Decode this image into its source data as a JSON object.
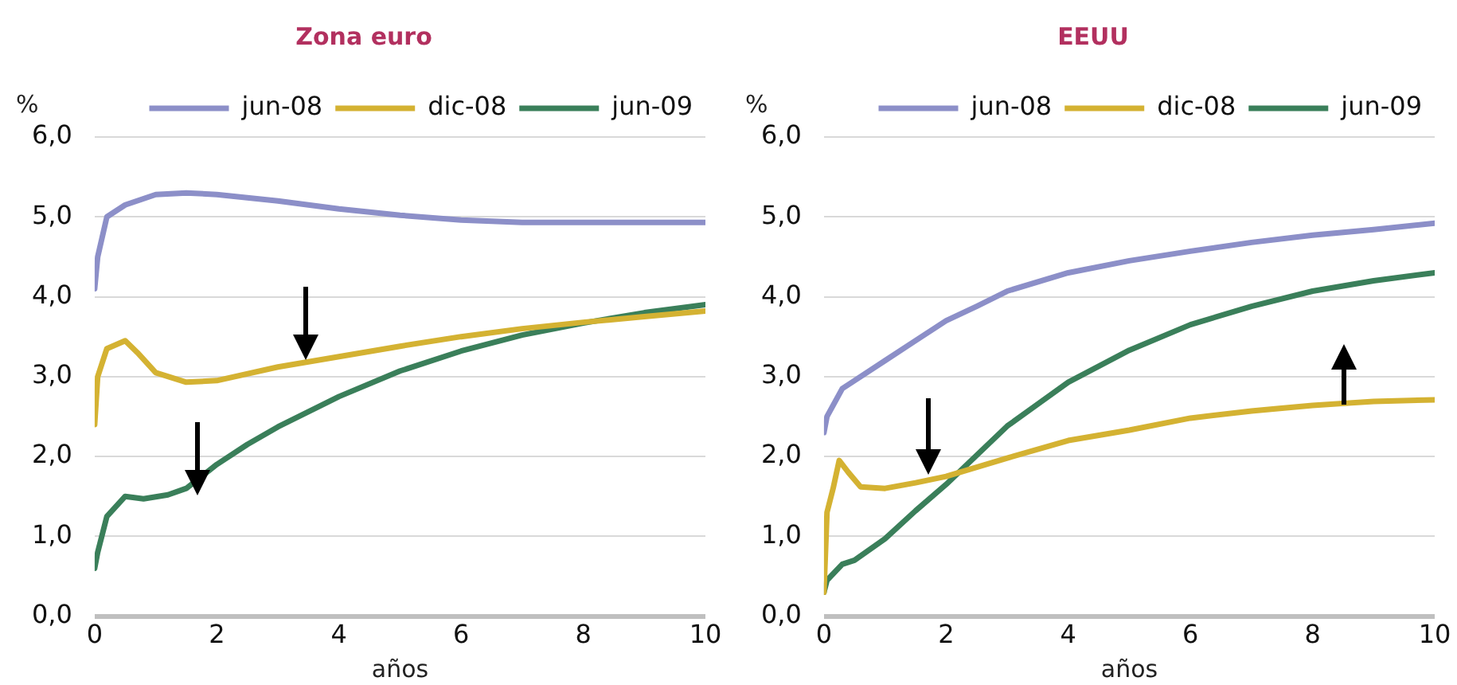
{
  "chart_data": [
    {
      "type": "line",
      "title": "Zona euro",
      "xlabel": "años",
      "ylabel": "%",
      "xlim": [
        0,
        10
      ],
      "xticks": [
        0,
        2,
        4,
        6,
        8,
        10
      ],
      "ylim": [
        0,
        6
      ],
      "yticks": [
        {
          "value": 0,
          "label": "0,0"
        },
        {
          "value": 1,
          "label": "1,0"
        },
        {
          "value": 2,
          "label": "2,0"
        },
        {
          "value": 3,
          "label": "3,0"
        },
        {
          "value": 4,
          "label": "4,0"
        },
        {
          "value": 5,
          "label": "5,0"
        },
        {
          "value": 6,
          "label": "6,0"
        }
      ],
      "grid": "y",
      "legend": "top right",
      "marker": "none",
      "line_style": "solid",
      "series": [
        {
          "name": "jun-08",
          "color": "#8c8fc8",
          "x": [
            0,
            0.05,
            0.2,
            0.5,
            1,
            1.5,
            2,
            3,
            4,
            5,
            6,
            7,
            8,
            9,
            10
          ],
          "values": [
            4.1,
            4.5,
            5.0,
            5.15,
            5.28,
            5.3,
            5.28,
            5.2,
            5.1,
            5.02,
            4.96,
            4.93,
            4.93,
            4.93,
            4.93
          ]
        },
        {
          "name": "dic-08",
          "color": "#d4b232",
          "x": [
            0,
            0.05,
            0.2,
            0.5,
            0.7,
            1,
            1.5,
            2,
            3,
            4,
            5,
            6,
            7,
            8,
            9,
            10
          ],
          "values": [
            2.4,
            3.0,
            3.35,
            3.45,
            3.3,
            3.05,
            2.93,
            2.95,
            3.12,
            3.25,
            3.38,
            3.5,
            3.6,
            3.68,
            3.75,
            3.82
          ]
        },
        {
          "name": "jun-09",
          "color": "#3a7f5a",
          "x": [
            0,
            0.05,
            0.2,
            0.5,
            0.8,
            1.2,
            1.5,
            2,
            2.5,
            3,
            4,
            5,
            6,
            7,
            8,
            9,
            10
          ],
          "values": [
            0.6,
            0.8,
            1.25,
            1.5,
            1.47,
            1.52,
            1.6,
            1.9,
            2.15,
            2.37,
            2.75,
            3.07,
            3.32,
            3.52,
            3.67,
            3.8,
            3.9
          ]
        }
      ]
    },
    {
      "type": "line",
      "title": "EEUU",
      "xlabel": "años",
      "ylabel": "%",
      "xlim": [
        0,
        10
      ],
      "xticks": [
        0,
        2,
        4,
        6,
        8,
        10
      ],
      "ylim": [
        0,
        6
      ],
      "yticks": [
        {
          "value": 0,
          "label": "0,0"
        },
        {
          "value": 1,
          "label": "1,0"
        },
        {
          "value": 2,
          "label": "2,0"
        },
        {
          "value": 3,
          "label": "3,0"
        },
        {
          "value": 4,
          "label": "4,0"
        },
        {
          "value": 5,
          "label": "5,0"
        },
        {
          "value": 6,
          "label": "6,0"
        }
      ],
      "grid": "y",
      "legend": "top right",
      "marker": "none",
      "line_style": "solid",
      "series": [
        {
          "name": "jun-08",
          "color": "#8c8fc8",
          "x": [
            0,
            0.05,
            0.3,
            0.5,
            1,
            1.5,
            2,
            2.5,
            3,
            4,
            5,
            6,
            7,
            8,
            9,
            10
          ],
          "values": [
            2.3,
            2.5,
            2.85,
            2.95,
            3.2,
            3.45,
            3.7,
            3.88,
            4.07,
            4.3,
            4.45,
            4.57,
            4.68,
            4.77,
            4.84,
            4.92
          ]
        },
        {
          "name": "dic-08",
          "color": "#d4b232",
          "x": [
            0,
            0.05,
            0.15,
            0.25,
            0.4,
            0.6,
            1,
            1.5,
            2,
            3,
            4,
            5,
            6,
            7,
            8,
            9,
            10
          ],
          "values": [
            0.3,
            1.3,
            1.6,
            1.95,
            1.8,
            1.62,
            1.6,
            1.67,
            1.75,
            1.98,
            2.2,
            2.33,
            2.48,
            2.57,
            2.64,
            2.69,
            2.71
          ]
        },
        {
          "name": "jun-09",
          "color": "#3a7f5a",
          "x": [
            0,
            0.05,
            0.3,
            0.5,
            1,
            1.5,
            2,
            3,
            4,
            5,
            6,
            7,
            8,
            9,
            10
          ],
          "values": [
            0.3,
            0.45,
            0.65,
            0.7,
            0.97,
            1.32,
            1.65,
            2.38,
            2.93,
            3.33,
            3.65,
            3.88,
            4.07,
            4.2,
            4.3
          ]
        }
      ]
    }
  ]
}
